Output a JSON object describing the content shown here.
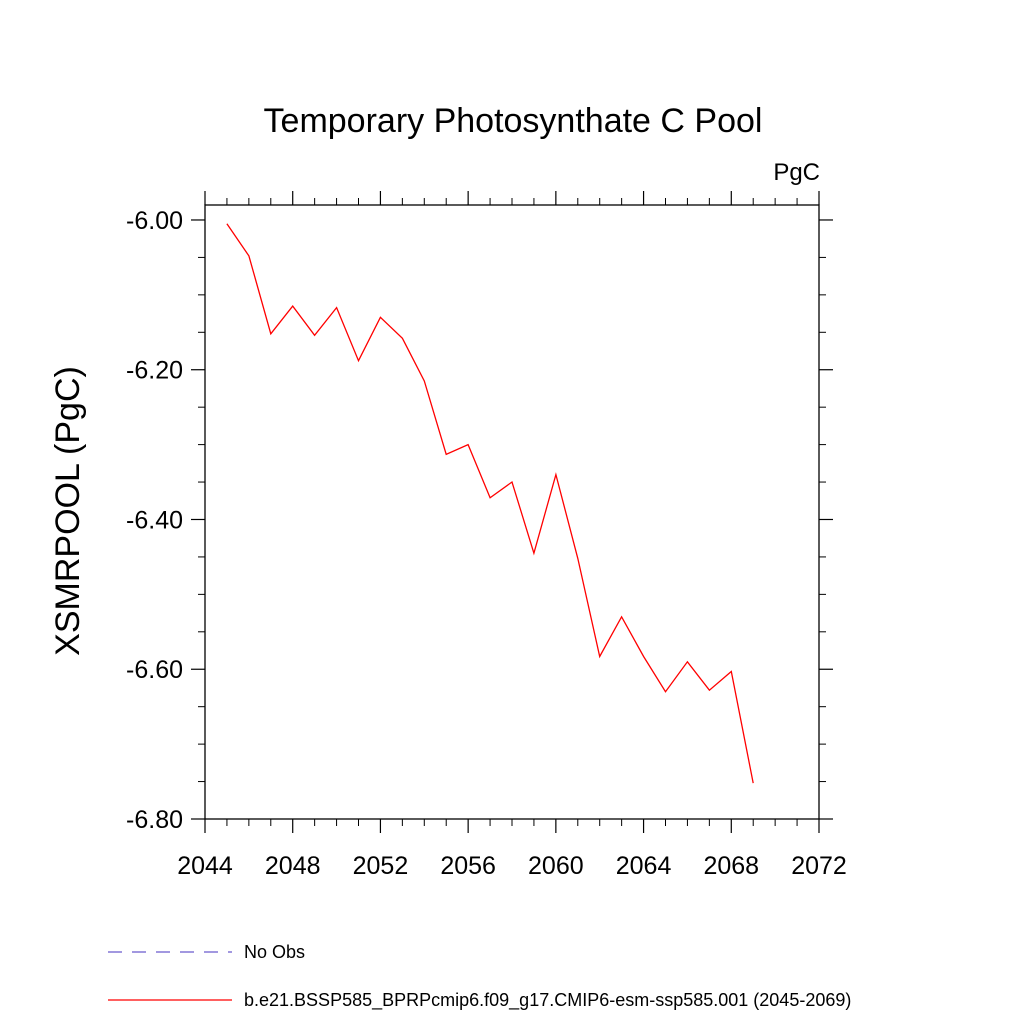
{
  "chart_data": {
    "type": "line",
    "title": "Temporary Photosynthate C Pool",
    "units_label": "PgC",
    "ylabel": "XSMRPOOL  (PgC)",
    "xlabel": "",
    "xlim": [
      2044,
      2072
    ],
    "ylim": [
      -6.8,
      -5.98
    ],
    "x_ticks": [
      2044,
      2048,
      2052,
      2056,
      2060,
      2064,
      2068,
      2072
    ],
    "x_tick_labels": [
      "2044",
      "2048",
      "2052",
      "2056",
      "2060",
      "2064",
      "2068",
      "2072"
    ],
    "y_ticks": [
      -6.0,
      -6.2,
      -6.4,
      -6.6,
      -6.8
    ],
    "y_tick_labels": [
      "-6.00",
      "-6.20",
      "-6.40",
      "-6.60",
      "-6.80"
    ],
    "grid": false,
    "legend_position": "bottom-left",
    "series": [
      {
        "name": "b.e21.BSSP585_BPRPcmip6.f09_g17.CMIP6-esm-ssp585.001 (2045-2069)",
        "color": "#ff0000",
        "dash": "solid",
        "x": [
          2045,
          2046,
          2047,
          2048,
          2049,
          2050,
          2051,
          2052,
          2053,
          2054,
          2055,
          2056,
          2057,
          2058,
          2059,
          2060,
          2061,
          2062,
          2063,
          2064,
          2065,
          2066,
          2067,
          2068,
          2069
        ],
        "values": [
          -6.005,
          -6.048,
          -6.152,
          -6.115,
          -6.154,
          -6.117,
          -6.188,
          -6.13,
          -6.158,
          -6.215,
          -6.313,
          -6.3,
          -6.371,
          -6.35,
          -6.445,
          -6.34,
          -6.452,
          -6.583,
          -6.53,
          -6.583,
          -6.63,
          -6.59,
          -6.628,
          -6.603,
          -6.752
        ]
      }
    ],
    "legend": [
      {
        "label": "No Obs",
        "color": "#6a5acd",
        "dash": "dashed"
      },
      {
        "label": "b.e21.BSSP585_BPRPcmip6.f09_g17.CMIP6-esm-ssp585.001 (2045-2069)",
        "color": "#ff0000",
        "dash": "solid"
      }
    ]
  }
}
